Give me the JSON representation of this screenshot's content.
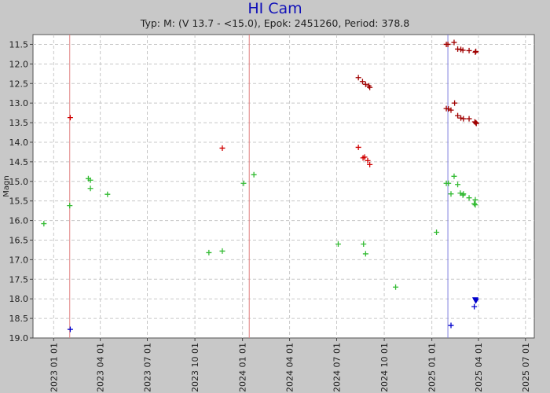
{
  "chart_data": {
    "type": "scatter",
    "title": "HI Cam",
    "subtitle": "Typ: M: (V 13.7 - <15.0), Epok: 2451260, Period: 378.8",
    "ylabel": "Magn",
    "xlabel": "",
    "ylim": [
      11.25,
      19.0
    ],
    "y_inverted": true,
    "x_range": [
      "2022-11-22",
      "2025-07-18"
    ],
    "grid": true,
    "y_ticks": [
      "11.5",
      "12.0",
      "12.5",
      "13.0",
      "13.5",
      "14.0",
      "14.5",
      "15.0",
      "15.5",
      "16.0",
      "16.5",
      "17.0",
      "17.5",
      "18.0",
      "18.5",
      "19.0"
    ],
    "x_ticks": [
      "2023 01 01",
      "2023 04 01",
      "2023 07 01",
      "2023 10 01",
      "2024 01 01",
      "2024 04 01",
      "2024 07 01",
      "2024 10 01",
      "2025 01 01",
      "2025 04 01",
      "2025 07 01"
    ],
    "x_tick_dates": [
      "2023-01-01",
      "2023-04-01",
      "2023-07-01",
      "2023-10-01",
      "2024-01-01",
      "2024-04-01",
      "2024-07-01",
      "2024-10-01",
      "2025-01-01",
      "2025-04-01",
      "2025-07-01"
    ],
    "vlines": [
      {
        "x": "2023-02-01",
        "color": "#e08080"
      },
      {
        "x": "2024-01-14",
        "color": "#e08080"
      },
      {
        "x": "2025-02-01",
        "color": "#8080e0"
      }
    ],
    "series": [
      {
        "color": "#a00000",
        "marker": "plus",
        "points": [
          [
            "2025-01-29",
            11.5
          ],
          [
            "2025-02-01",
            11.5
          ],
          [
            "2025-02-13",
            11.45
          ],
          [
            "2025-02-20",
            11.62
          ],
          [
            "2025-02-26",
            11.63
          ],
          [
            "2025-03-02",
            11.65
          ],
          [
            "2025-03-14",
            11.66
          ],
          [
            "2025-03-26",
            11.7
          ],
          [
            "2025-03-27",
            11.68
          ],
          [
            "2024-08-12",
            12.35
          ],
          [
            "2024-08-20",
            12.45
          ],
          [
            "2024-08-26",
            12.52
          ],
          [
            "2024-09-01",
            12.56
          ],
          [
            "2024-09-03",
            12.6
          ],
          [
            "2025-01-29",
            13.14
          ],
          [
            "2025-02-02",
            13.15
          ],
          [
            "2025-02-07",
            13.18
          ],
          [
            "2025-02-14",
            13.0
          ],
          [
            "2025-02-20",
            13.32
          ],
          [
            "2025-02-26",
            13.38
          ],
          [
            "2025-03-03",
            13.4
          ],
          [
            "2025-03-14",
            13.4
          ],
          [
            "2025-03-25",
            13.48
          ],
          [
            "2025-03-27",
            13.5
          ],
          [
            "2025-03-28",
            13.52
          ]
        ]
      },
      {
        "color": "#d00000",
        "marker": "plus",
        "points": [
          [
            "2023-02-02",
            13.37
          ],
          [
            "2023-11-23",
            14.15
          ],
          [
            "2024-08-12",
            14.13
          ],
          [
            "2024-08-21",
            14.4
          ],
          [
            "2024-08-24",
            14.38
          ],
          [
            "2024-08-30",
            14.47
          ],
          [
            "2024-09-03",
            14.57
          ]
        ]
      },
      {
        "color": "#33bb33",
        "marker": "plus",
        "points": [
          [
            "2022-12-13",
            16.08
          ],
          [
            "2023-02-01",
            15.62
          ],
          [
            "2023-03-09",
            14.93
          ],
          [
            "2023-03-13",
            14.97
          ],
          [
            "2023-03-13",
            15.18
          ],
          [
            "2023-04-15",
            15.33
          ],
          [
            "2023-10-28",
            16.82
          ],
          [
            "2023-11-23",
            16.78
          ],
          [
            "2024-01-03",
            15.05
          ],
          [
            "2024-01-23",
            14.83
          ],
          [
            "2024-07-04",
            16.6
          ],
          [
            "2024-08-22",
            16.6
          ],
          [
            "2024-08-26",
            16.85
          ],
          [
            "2024-10-23",
            17.7
          ],
          [
            "2025-01-10",
            16.3
          ],
          [
            "2025-01-29",
            15.05
          ],
          [
            "2025-02-02",
            15.05
          ],
          [
            "2025-02-07",
            15.32
          ],
          [
            "2025-02-13",
            14.87
          ],
          [
            "2025-02-20",
            15.08
          ],
          [
            "2025-02-25",
            15.3
          ],
          [
            "2025-03-02",
            15.35
          ],
          [
            "2025-03-03",
            15.32
          ],
          [
            "2025-03-14",
            15.42
          ],
          [
            "2025-03-24",
            15.57
          ],
          [
            "2025-03-26",
            15.47
          ],
          [
            "2025-03-26",
            15.6
          ]
        ]
      },
      {
        "color": "#0000cc",
        "marker": "plus",
        "points": [
          [
            "2023-02-02",
            18.78
          ],
          [
            "2025-02-07",
            18.68
          ],
          [
            "2025-03-24",
            18.2
          ]
        ]
      },
      {
        "color": "#0000cc",
        "marker": "triangle-down",
        "points": [
          [
            "2025-03-26",
            18.02
          ],
          [
            "2025-03-27",
            18.05
          ]
        ]
      }
    ]
  }
}
